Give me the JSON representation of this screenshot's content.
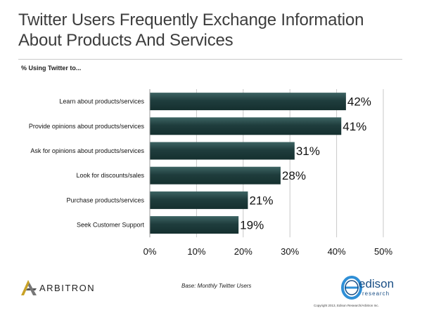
{
  "title_lines": [
    "Twitter Users Frequently Exchange Information",
    "About Products And Services"
  ],
  "subtitle": "% Using Twitter to...",
  "base_note": "Base: Monthly Twitter Users",
  "logos": {
    "left": "ARBITRON",
    "right": "edison",
    "right_sub": "research"
  },
  "copyright": "Copyright 2013, Edison Research/Arbitron Inc.",
  "colors": {
    "bar": "#1f3d3d",
    "bar_highlight": "#3d6463",
    "grid": "#c8c8c8",
    "arbitron_gold": "#c9a227",
    "edison_blue": "#1a4f86"
  },
  "chart_data": {
    "type": "bar",
    "orientation": "horizontal",
    "categories": [
      "Learn about products/services",
      "Provide opinions about products/services",
      "Ask for opinions about products/services",
      "Look for discounts/sales",
      "Purchase products/services",
      "Seek Customer Support"
    ],
    "values": [
      42,
      41,
      31,
      28,
      21,
      19
    ],
    "value_labels": [
      "42%",
      "41%",
      "31%",
      "28%",
      "21%",
      "19%"
    ],
    "xlim": [
      0,
      50
    ],
    "ticks": [
      0,
      10,
      20,
      30,
      40,
      50
    ],
    "tick_labels": [
      "0%",
      "10%",
      "20%",
      "30%",
      "40%",
      "50%"
    ],
    "grid": true,
    "title": "Twitter Users Frequently Exchange Information About Products And Services",
    "ylabel": "% Using Twitter to...",
    "xlabel": ""
  }
}
